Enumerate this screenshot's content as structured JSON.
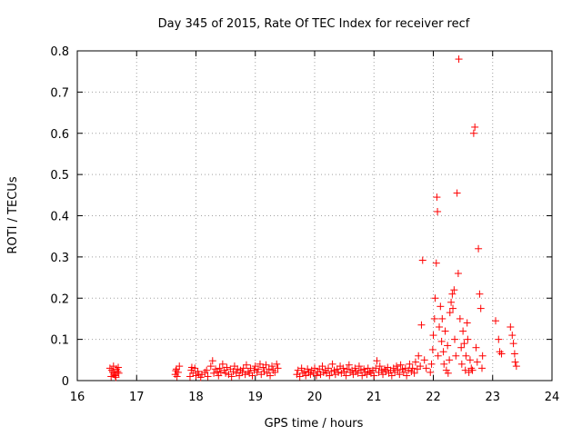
{
  "chart_data": {
    "type": "scatter",
    "title": "Day 345 of 2015, Rate Of TEC Index for receiver recf",
    "xlabel": "GPS time / hours",
    "ylabel": "ROTI / TECUs",
    "xlim": [
      16,
      24
    ],
    "ylim": [
      0,
      0.8
    ],
    "xticks": [
      "16",
      "17",
      "18",
      "19",
      "20",
      "21",
      "22",
      "23",
      "24"
    ],
    "yticks": [
      "0",
      "0.1",
      "0.2",
      "0.3",
      "0.4",
      "0.5",
      "0.6",
      "0.7",
      "0.8"
    ],
    "grid": true,
    "marker": "+",
    "color": "#ff0000",
    "series": [
      {
        "name": "ROTI",
        "points": [
          [
            16.55,
            0.03
          ],
          [
            16.58,
            0.025
          ],
          [
            16.6,
            0.02
          ],
          [
            16.62,
            0.015
          ],
          [
            16.64,
            0.012
          ],
          [
            16.66,
            0.028
          ],
          [
            16.68,
            0.022
          ],
          [
            16.7,
            0.018
          ],
          [
            16.57,
            0.01
          ],
          [
            16.61,
            0.035
          ],
          [
            16.65,
            0.008
          ],
          [
            16.69,
            0.032
          ],
          [
            17.65,
            0.015
          ],
          [
            17.67,
            0.028
          ],
          [
            17.7,
            0.02
          ],
          [
            17.72,
            0.035
          ],
          [
            17.68,
            0.01
          ],
          [
            17.66,
            0.024
          ],
          [
            17.9,
            0.01
          ],
          [
            17.92,
            0.025
          ],
          [
            17.95,
            0.018
          ],
          [
            17.98,
            0.03
          ],
          [
            18.0,
            0.012
          ],
          [
            18.03,
            0.022
          ],
          [
            18.05,
            0.015
          ],
          [
            18.08,
            0.008
          ],
          [
            17.93,
            0.032
          ],
          [
            18.1,
            0.015
          ],
          [
            18.15,
            0.02
          ],
          [
            18.18,
            0.025
          ],
          [
            18.2,
            0.01
          ],
          [
            18.25,
            0.035
          ],
          [
            18.28,
            0.048
          ],
          [
            18.3,
            0.018
          ],
          [
            18.33,
            0.028
          ],
          [
            18.36,
            0.022
          ],
          [
            18.38,
            0.012
          ],
          [
            18.4,
            0.03
          ],
          [
            18.42,
            0.02
          ],
          [
            18.45,
            0.04
          ],
          [
            18.48,
            0.025
          ],
          [
            18.5,
            0.018
          ],
          [
            18.52,
            0.032
          ],
          [
            18.55,
            0.015
          ],
          [
            18.58,
            0.028
          ],
          [
            18.6,
            0.01
          ],
          [
            18.63,
            0.022
          ],
          [
            18.65,
            0.035
          ],
          [
            18.68,
            0.018
          ],
          [
            18.7,
            0.028
          ],
          [
            18.73,
            0.012
          ],
          [
            18.75,
            0.025
          ],
          [
            18.78,
            0.02
          ],
          [
            18.8,
            0.03
          ],
          [
            18.83,
            0.015
          ],
          [
            18.85,
            0.038
          ],
          [
            18.88,
            0.022
          ],
          [
            18.9,
            0.018
          ],
          [
            18.92,
            0.03
          ],
          [
            18.95,
            0.012
          ],
          [
            18.98,
            0.025
          ],
          [
            19.0,
            0.035
          ],
          [
            19.03,
            0.02
          ],
          [
            19.05,
            0.028
          ],
          [
            19.08,
            0.04
          ],
          [
            19.1,
            0.015
          ],
          [
            19.13,
            0.032
          ],
          [
            19.15,
            0.022
          ],
          [
            19.18,
            0.038
          ],
          [
            19.2,
            0.018
          ],
          [
            19.23,
            0.028
          ],
          [
            19.25,
            0.012
          ],
          [
            19.28,
            0.035
          ],
          [
            19.3,
            0.025
          ],
          [
            19.33,
            0.02
          ],
          [
            19.36,
            0.04
          ],
          [
            19.38,
            0.03
          ],
          [
            19.7,
            0.015
          ],
          [
            19.72,
            0.025
          ],
          [
            19.75,
            0.01
          ],
          [
            19.78,
            0.03
          ],
          [
            19.8,
            0.018
          ],
          [
            19.83,
            0.022
          ],
          [
            19.85,
            0.012
          ],
          [
            19.88,
            0.028
          ],
          [
            19.9,
            0.02
          ],
          [
            19.93,
            0.015
          ],
          [
            19.95,
            0.025
          ],
          [
            19.98,
            0.018
          ],
          [
            20.0,
            0.03
          ],
          [
            20.03,
            0.012
          ],
          [
            20.05,
            0.022
          ],
          [
            20.08,
            0.028
          ],
          [
            20.1,
            0.015
          ],
          [
            20.13,
            0.035
          ],
          [
            20.15,
            0.02
          ],
          [
            20.18,
            0.025
          ],
          [
            20.2,
            0.018
          ],
          [
            20.23,
            0.03
          ],
          [
            20.25,
            0.012
          ],
          [
            20.28,
            0.022
          ],
          [
            20.3,
            0.04
          ],
          [
            20.33,
            0.025
          ],
          [
            20.35,
            0.015
          ],
          [
            20.38,
            0.028
          ],
          [
            20.4,
            0.02
          ],
          [
            20.43,
            0.035
          ],
          [
            20.45,
            0.018
          ],
          [
            20.48,
            0.03
          ],
          [
            20.5,
            0.022
          ],
          [
            20.53,
            0.012
          ],
          [
            20.55,
            0.028
          ],
          [
            20.58,
            0.038
          ],
          [
            20.6,
            0.02
          ],
          [
            20.63,
            0.025
          ],
          [
            20.65,
            0.015
          ],
          [
            20.68,
            0.03
          ],
          [
            20.7,
            0.022
          ],
          [
            20.73,
            0.018
          ],
          [
            20.75,
            0.035
          ],
          [
            20.78,
            0.025
          ],
          [
            20.8,
            0.012
          ],
          [
            20.83,
            0.028
          ],
          [
            20.85,
            0.02
          ],
          [
            20.88,
            0.015
          ],
          [
            20.9,
            0.03
          ],
          [
            20.93,
            0.022
          ],
          [
            20.95,
            0.018
          ],
          [
            20.98,
            0.025
          ],
          [
            21.0,
            0.012
          ],
          [
            21.03,
            0.03
          ],
          [
            21.05,
            0.048
          ],
          [
            21.08,
            0.02
          ],
          [
            21.1,
            0.035
          ],
          [
            21.13,
            0.025
          ],
          [
            21.15,
            0.015
          ],
          [
            21.18,
            0.028
          ],
          [
            21.2,
            0.022
          ],
          [
            21.23,
            0.032
          ],
          [
            21.25,
            0.018
          ],
          [
            21.28,
            0.025
          ],
          [
            21.3,
            0.012
          ],
          [
            21.33,
            0.03
          ],
          [
            21.35,
            0.02
          ],
          [
            21.38,
            0.035
          ],
          [
            21.4,
            0.025
          ],
          [
            21.43,
            0.015
          ],
          [
            21.45,
            0.038
          ],
          [
            21.48,
            0.028
          ],
          [
            21.5,
            0.02
          ],
          [
            21.53,
            0.03
          ],
          [
            21.55,
            0.012
          ],
          [
            21.58,
            0.025
          ],
          [
            21.6,
            0.04
          ],
          [
            21.63,
            0.022
          ],
          [
            21.65,
            0.03
          ],
          [
            21.68,
            0.018
          ],
          [
            21.7,
            0.045
          ],
          [
            21.73,
            0.028
          ],
          [
            21.75,
            0.06
          ],
          [
            21.78,
            0.035
          ],
          [
            21.8,
            0.135
          ],
          [
            21.82,
            0.292
          ],
          [
            21.85,
            0.05
          ],
          [
            21.88,
            0.03
          ],
          [
            21.95,
            0.02
          ],
          [
            21.97,
            0.04
          ],
          [
            21.99,
            0.075
          ],
          [
            22.0,
            0.11
          ],
          [
            22.02,
            0.15
          ],
          [
            22.03,
            0.2
          ],
          [
            22.05,
            0.285
          ],
          [
            22.06,
            0.445
          ],
          [
            22.07,
            0.41
          ],
          [
            22.08,
            0.06
          ],
          [
            22.1,
            0.13
          ],
          [
            22.12,
            0.18
          ],
          [
            22.14,
            0.095
          ],
          [
            22.15,
            0.15
          ],
          [
            22.17,
            0.07
          ],
          [
            22.18,
            0.04
          ],
          [
            22.2,
            0.12
          ],
          [
            22.22,
            0.025
          ],
          [
            22.24,
            0.085
          ],
          [
            22.25,
            0.018
          ],
          [
            22.27,
            0.05
          ],
          [
            22.28,
            0.165
          ],
          [
            22.3,
            0.19
          ],
          [
            22.32,
            0.21
          ],
          [
            22.33,
            0.175
          ],
          [
            22.35,
            0.22
          ],
          [
            22.36,
            0.1
          ],
          [
            22.38,
            0.06
          ],
          [
            22.4,
            0.455
          ],
          [
            22.42,
            0.26
          ],
          [
            22.43,
            0.78
          ],
          [
            22.45,
            0.15
          ],
          [
            22.47,
            0.08
          ],
          [
            22.48,
            0.04
          ],
          [
            22.5,
            0.12
          ],
          [
            22.52,
            0.09
          ],
          [
            22.54,
            0.025
          ],
          [
            22.55,
            0.06
          ],
          [
            22.57,
            0.14
          ],
          [
            22.58,
            0.1
          ],
          [
            22.6,
            0.02
          ],
          [
            22.62,
            0.05
          ],
          [
            22.64,
            0.03
          ],
          [
            22.66,
            0.025
          ],
          [
            22.68,
            0.6
          ],
          [
            22.7,
            0.615
          ],
          [
            22.72,
            0.08
          ],
          [
            22.74,
            0.045
          ],
          [
            22.76,
            0.32
          ],
          [
            22.78,
            0.21
          ],
          [
            22.8,
            0.175
          ],
          [
            22.82,
            0.03
          ],
          [
            22.83,
            0.06
          ],
          [
            23.05,
            0.145
          ],
          [
            23.1,
            0.1
          ],
          [
            23.12,
            0.07
          ],
          [
            23.15,
            0.065
          ],
          [
            23.3,
            0.13
          ],
          [
            23.33,
            0.11
          ],
          [
            23.35,
            0.09
          ],
          [
            23.37,
            0.065
          ],
          [
            23.38,
            0.045
          ],
          [
            23.4,
            0.035
          ]
        ]
      }
    ]
  }
}
